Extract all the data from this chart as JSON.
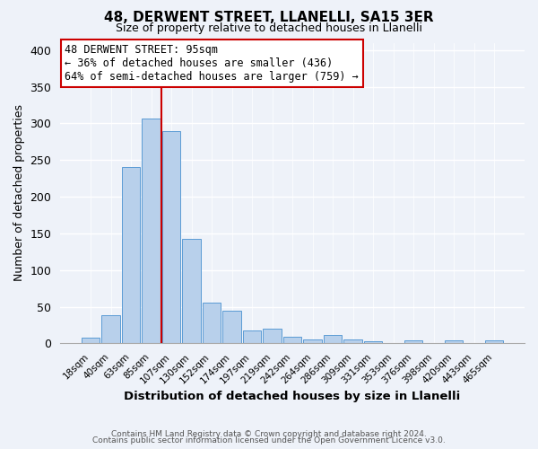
{
  "title": "48, DERWENT STREET, LLANELLI, SA15 3ER",
  "subtitle": "Size of property relative to detached houses in Llanelli",
  "xlabel": "Distribution of detached houses by size in Llanelli",
  "ylabel": "Number of detached properties",
  "bar_labels": [
    "18sqm",
    "40sqm",
    "63sqm",
    "85sqm",
    "107sqm",
    "130sqm",
    "152sqm",
    "174sqm",
    "197sqm",
    "219sqm",
    "242sqm",
    "264sqm",
    "286sqm",
    "309sqm",
    "331sqm",
    "353sqm",
    "376sqm",
    "398sqm",
    "420sqm",
    "443sqm",
    "465sqm"
  ],
  "bar_values": [
    8,
    38,
    240,
    307,
    290,
    143,
    55,
    44,
    18,
    20,
    9,
    5,
    12,
    5,
    3,
    1,
    4,
    1,
    4,
    1,
    4
  ],
  "bar_color": "#b8d0eb",
  "bar_edge_color": "#5b9bd5",
  "ylim": [
    0,
    410
  ],
  "yticks": [
    0,
    50,
    100,
    150,
    200,
    250,
    300,
    350,
    400
  ],
  "vline_color": "#cc0000",
  "annotation_title": "48 DERWENT STREET: 95sqm",
  "annotation_line1": "← 36% of detached houses are smaller (436)",
  "annotation_line2": "64% of semi-detached houses are larger (759) →",
  "annotation_box_color": "#ffffff",
  "annotation_box_edge": "#cc0000",
  "bg_color": "#eef2f9",
  "footer1": "Contains HM Land Registry data © Crown copyright and database right 2024.",
  "footer2": "Contains public sector information licensed under the Open Government Licence v3.0."
}
